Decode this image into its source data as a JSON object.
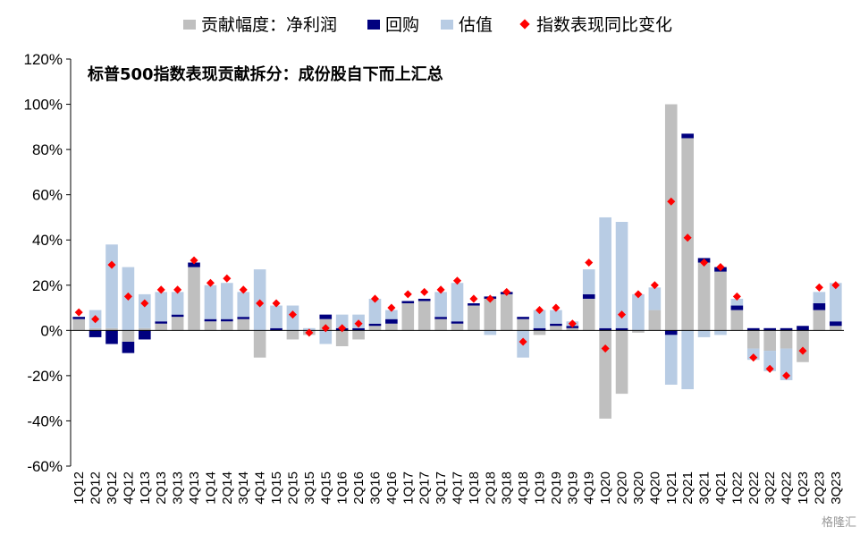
{
  "chart_data": {
    "type": "bar",
    "subtitle": "标普500指数表现贡献拆分：成份股自下而上汇总",
    "ylim": [
      -60,
      120
    ],
    "y_ticks": [
      -60,
      -40,
      -20,
      0,
      20,
      40,
      60,
      80,
      100,
      120
    ],
    "y_unit": "%",
    "grid": false,
    "legend_position": "top",
    "categories": [
      "1Q12",
      "2Q12",
      "3Q12",
      "4Q12",
      "1Q13",
      "2Q13",
      "3Q13",
      "4Q13",
      "1Q14",
      "2Q14",
      "3Q14",
      "4Q14",
      "1Q15",
      "2Q15",
      "3Q15",
      "4Q15",
      "1Q16",
      "2Q16",
      "3Q16",
      "4Q16",
      "1Q17",
      "2Q17",
      "3Q17",
      "4Q17",
      "1Q18",
      "2Q18",
      "3Q18",
      "4Q18",
      "1Q19",
      "2Q19",
      "3Q19",
      "4Q19",
      "1Q20",
      "2Q20",
      "3Q20",
      "4Q20",
      "1Q21",
      "2Q21",
      "3Q21",
      "4Q21",
      "1Q22",
      "2Q22",
      "3Q22",
      "4Q22",
      "1Q23",
      "2Q23",
      "3Q23"
    ],
    "series": [
      {
        "name": "贡献幅度：净利润",
        "kind": "bar",
        "color": "#bfbfbf",
        "values": [
          5,
          1,
          1,
          -5,
          1,
          3,
          6,
          28,
          4,
          4,
          5,
          -12,
          0,
          -4,
          -2,
          5,
          -7,
          -4,
          2,
          3,
          12,
          13,
          5,
          3,
          11,
          14,
          16,
          5,
          -2,
          2,
          1,
          14,
          -39,
          -28,
          -1,
          9,
          100,
          85,
          30,
          26,
          9,
          -8,
          -9,
          -8,
          -14,
          9,
          2
        ]
      },
      {
        "name": "回购",
        "kind": "bar",
        "color": "#00007f",
        "values": [
          1,
          -3,
          -6,
          -5,
          -4,
          1,
          1,
          2,
          1,
          1,
          1,
          0,
          1,
          0,
          0,
          2,
          1,
          1,
          1,
          2,
          1,
          1,
          1,
          1,
          1,
          1,
          1,
          1,
          1,
          1,
          1,
          2,
          1,
          1,
          0,
          0,
          -2,
          2,
          2,
          2,
          2,
          1,
          1,
          1,
          2,
          3,
          2
        ]
      },
      {
        "name": "估值",
        "kind": "bar",
        "color": "#b8cce4",
        "values": [
          0,
          8,
          37,
          28,
          15,
          13,
          10,
          0,
          15,
          16,
          11,
          27,
          10,
          11,
          1,
          -6,
          6,
          6,
          11,
          4,
          0,
          0,
          11,
          17,
          0,
          -2,
          0,
          -12,
          8,
          6,
          2,
          11,
          49,
          47,
          16,
          10,
          -22,
          -26,
          -3,
          -2,
          3,
          -5,
          -9,
          -14,
          0,
          5,
          17
        ]
      },
      {
        "name": "指数表现同比变化",
        "kind": "marker",
        "color": "#ff0000",
        "values": [
          8,
          5,
          29,
          15,
          12,
          18,
          18,
          31,
          21,
          23,
          18,
          12,
          12,
          7,
          -1,
          1,
          1,
          3,
          14,
          10,
          16,
          17,
          18,
          22,
          14,
          14,
          17,
          -5,
          9,
          10,
          3,
          30,
          -8,
          7,
          16,
          20,
          57,
          41,
          30,
          28,
          15,
          -12,
          -17,
          -20,
          -9,
          19,
          20
        ]
      }
    ]
  },
  "watermark": "格隆汇"
}
